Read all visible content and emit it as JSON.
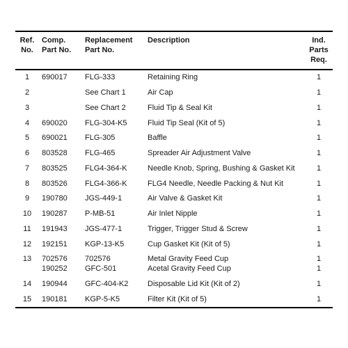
{
  "headers": {
    "ref": "Ref.\nNo.",
    "comp": "Comp.\nPart No.",
    "rep": "Replacement\nPart No.",
    "desc": "Description",
    "ind": "Ind.\nParts\nReq."
  },
  "rows": [
    {
      "ref": "1",
      "comp": "690017",
      "rep": "FLG-333",
      "desc": "Retaining Ring",
      "ind": "1"
    },
    {
      "ref": "2",
      "comp": "",
      "rep": "See Chart 1",
      "desc": "Air Cap",
      "ind": "1"
    },
    {
      "ref": "3",
      "comp": "",
      "rep": "See Chart 2",
      "desc": "Fluid Tip & Seal Kit",
      "ind": "1"
    },
    {
      "ref": "4",
      "comp": "690020",
      "rep": "FLG-304-K5",
      "desc": "Fluid Tip Seal (Kit of 5)",
      "ind": "1"
    },
    {
      "ref": "5",
      "comp": "690021",
      "rep": "FLG-305",
      "desc": "Baffle",
      "ind": "1"
    },
    {
      "ref": "6",
      "comp": "803528",
      "rep": "FLG-465",
      "desc": "Spreader Air Adjustment Valve",
      "ind": "1"
    },
    {
      "ref": "7",
      "comp": "803525",
      "rep": "FLG4-364-K",
      "desc": "Needle Knob, Spring, Bushing & Gasket Kit",
      "ind": "1"
    },
    {
      "ref": "8",
      "comp": "803526",
      "rep": "FLG4-366-K",
      "desc": "FLG4 Needle, Needle Packing & Nut Kit",
      "ind": "1"
    },
    {
      "ref": "9",
      "comp": "190780",
      "rep": "JGS-449-1",
      "desc": "Air Valve & Gasket Kit",
      "ind": "1"
    },
    {
      "ref": "10",
      "comp": "190287",
      "rep": "P-MB-51",
      "desc": "Air Inlet Nipple",
      "ind": "1"
    },
    {
      "ref": "11",
      "comp": "191943",
      "rep": "JGS-477-1",
      "desc": "Trigger, Trigger Stud & Screw",
      "ind": "1"
    },
    {
      "ref": "12",
      "comp": "192151",
      "rep": "KGP-13-K5",
      "desc": "Cup Gasket Kit (Kit of 5)",
      "ind": "1"
    },
    {
      "ref": "13",
      "comp": "702576\n190252",
      "rep": "702576\nGFC-501",
      "desc": "Metal Gravity Feed Cup\nAcetal Gravity Feed Cup",
      "ind": "1\n1"
    },
    {
      "ref": "14",
      "comp": "190944",
      "rep": "GFC-404-K2",
      "desc": "Disposable Lid Kit (Kit of 2)",
      "ind": "1"
    },
    {
      "ref": "15",
      "comp": "190181",
      "rep": "KGP-5-K5",
      "desc": "Filter Kit (Kit of 5)",
      "ind": "1"
    }
  ]
}
